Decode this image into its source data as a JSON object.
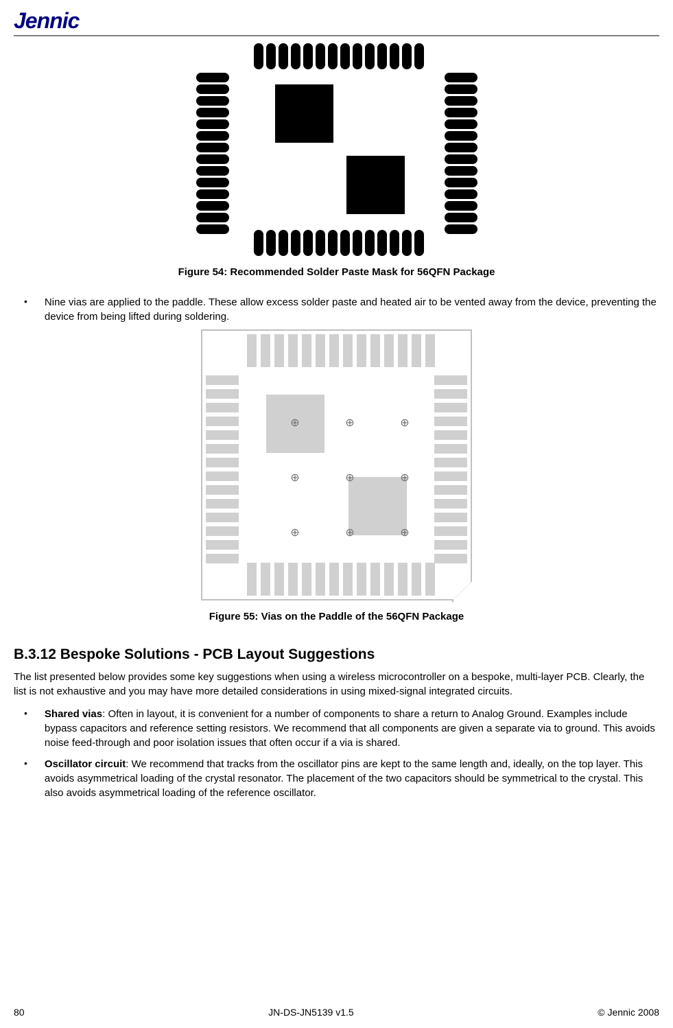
{
  "logo": "Jennic",
  "figure54": {
    "caption": "Figure 54: Recommended Solder Paste Mask for 56QFN Package",
    "pins_per_side": 14,
    "pin_color": "#000000",
    "pad_color": "#000000"
  },
  "bullet1": {
    "text": "Nine vias are applied to the paddle. These allow excess solder paste and heated air to be vented away from the device, preventing the device from being lifted during soldering."
  },
  "figure55": {
    "caption": "Figure 55: Vias on the Paddle of the 56QFN Package",
    "pins_per_side": 14,
    "vias_grid": 3,
    "pin_color": "#d0d0d0",
    "border_color": "#c0c0c0",
    "via_color": "#707070"
  },
  "section": {
    "heading": "B.3.12  Bespoke Solutions  - PCB Layout Suggestions",
    "intro": "The list presented below provides some key suggestions when using a wireless microcontroller on a bespoke, multi-layer PCB.  Clearly, the list is not exhaustive and you may have more detailed considerations in using mixed-signal integrated circuits."
  },
  "bullets": [
    {
      "label": "Shared vias",
      "text": ":  Often in layout, it is convenient for a number of components to share a return to Analog Ground. Examples include bypass capacitors and reference setting resistors. We recommend that all components are given a separate via to ground.  This avoids noise feed-through and poor isolation issues that often occur if a via is shared."
    },
    {
      "label": "Oscillator circuit",
      "text": ": We recommend that tracks from the oscillator pins are kept to the same length and, ideally, on the top layer. This avoids asymmetrical loading of the crystal resonator. The placement of the two capacitors should be symmetrical to the crystal. This also avoids asymmetrical loading of the reference oscillator."
    }
  ],
  "footer": {
    "page": "80",
    "docid": "JN-DS-JN5139 v1.5",
    "copyright": "© Jennic 2008"
  }
}
